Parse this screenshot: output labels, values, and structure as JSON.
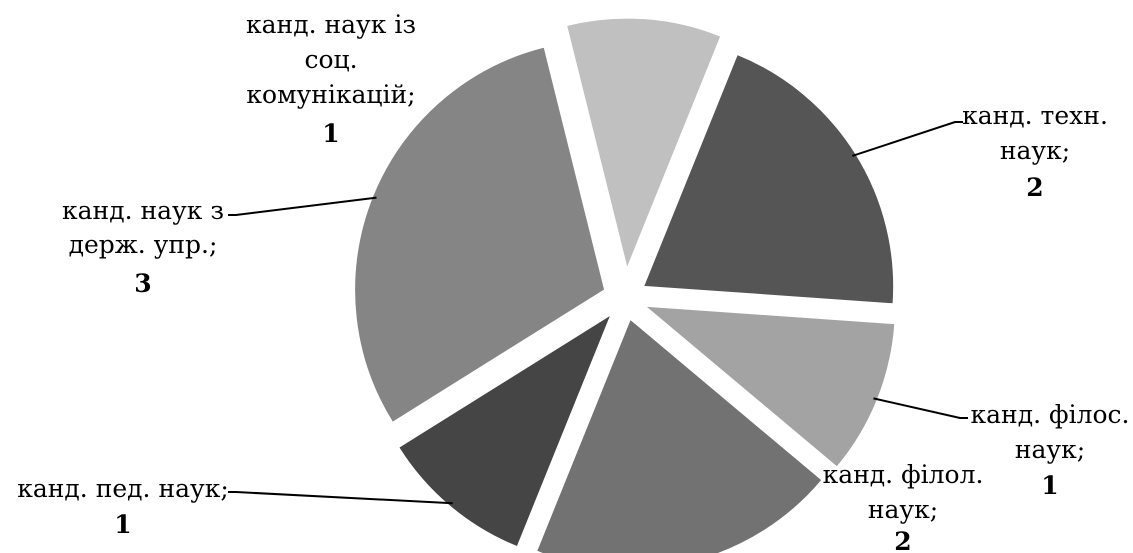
{
  "chart_data": {
    "type": "pie",
    "exploded": true,
    "slices": [
      {
        "label": "канд. наук із соц. комунікацій",
        "value": 1,
        "color": "#c0c0c0"
      },
      {
        "label": "канд. техн. наук",
        "value": 2,
        "color": "#555555"
      },
      {
        "label": "канд. філос. наук",
        "value": 1,
        "color": "#a3a3a3"
      },
      {
        "label": "канд. філол. наук",
        "value": 2,
        "color": "#727272"
      },
      {
        "label": "канд. пед. наук",
        "value": 1,
        "color": "#454545"
      },
      {
        "label": "канд. наук з держ. упр.",
        "value": 3,
        "color": "#858585"
      }
    ],
    "label_text": {
      "s0": [
        "канд. наук із",
        "соц.",
        "комунікацій;"
      ],
      "s1": [
        "канд. техн.",
        "наук;"
      ],
      "s2": [
        "канд. філос.",
        "наук;"
      ],
      "s3": [
        "канд. філол.",
        "наук;"
      ],
      "s4": [
        "канд. пед. наук;"
      ],
      "s5": [
        "канд. наук з",
        "держ. упр.;"
      ]
    },
    "value_text": {
      "s0": "1",
      "s1": "2",
      "s2": "1",
      "s3": "2",
      "s4": "1",
      "s5": "3"
    }
  }
}
